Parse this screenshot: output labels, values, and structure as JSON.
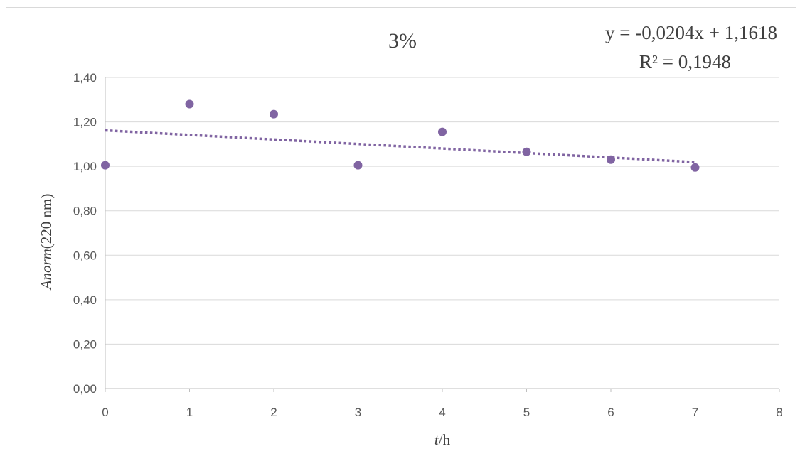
{
  "chart_data": {
    "type": "scatter",
    "title": "3%",
    "xlabel": {
      "italic": "t",
      "rest": "/h"
    },
    "ylabel": {
      "italic": "Anorm",
      "rest": "(220 nm)"
    },
    "xlim": [
      0,
      8
    ],
    "ylim": [
      0,
      1.4
    ],
    "x_ticks": [
      "0",
      "1",
      "2",
      "3",
      "4",
      "5",
      "6",
      "7",
      "8"
    ],
    "y_ticks": [
      "0,00",
      "0,20",
      "0,40",
      "0,60",
      "0,80",
      "1,00",
      "1,20",
      "1,40"
    ],
    "grid": true,
    "series": [
      {
        "x": [
          0,
          1,
          2,
          3,
          4,
          5,
          6,
          7
        ],
        "y": [
          1.005,
          1.28,
          1.235,
          1.005,
          1.155,
          1.065,
          1.03,
          0.995
        ],
        "color": "#8064a2"
      }
    ],
    "trendline": {
      "type": "linear",
      "slope": -0.0204,
      "intercept": 1.1618,
      "x_range": [
        0,
        7
      ],
      "style": "dotted",
      "color": "#8064a2",
      "equation": "y = -0,0204x + 1,1618",
      "r2": "R² = 0,1948"
    }
  }
}
